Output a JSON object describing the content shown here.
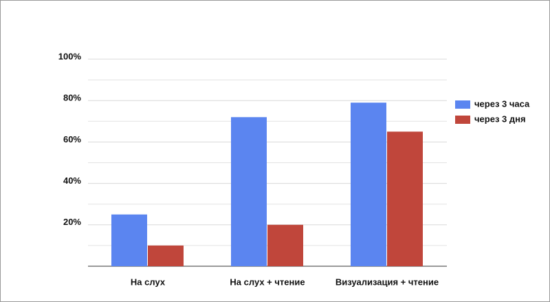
{
  "chart_data": {
    "type": "bar",
    "categories": [
      "На слух",
      "На слух + чтение",
      "Визуализация + чтение"
    ],
    "series": [
      {
        "name": "через 3 часа",
        "color": "#5b85f0",
        "values": [
          25,
          72,
          79
        ]
      },
      {
        "name": "через 3 дня",
        "color": "#c0463b",
        "values": [
          10,
          20,
          65
        ]
      }
    ],
    "ylim": [
      0,
      100
    ],
    "yticks": [
      {
        "value": 20,
        "label": "20%"
      },
      {
        "value": 40,
        "label": "40%"
      },
      {
        "value": 60,
        "label": "60%"
      },
      {
        "value": 80,
        "label": "80%"
      },
      {
        "value": 100,
        "label": "100%"
      }
    ],
    "minor_yticks": [
      10,
      30,
      50,
      70,
      90
    ],
    "grid": true,
    "legend": "right"
  }
}
